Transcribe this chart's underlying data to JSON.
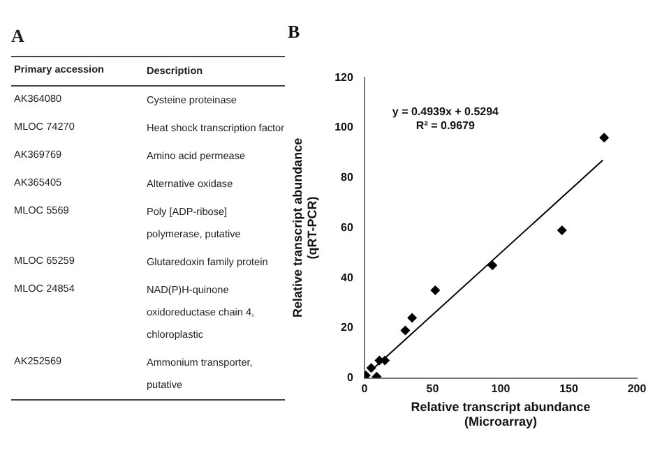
{
  "chart_data": [
    {
      "type": "other",
      "title": "A",
      "annotations": [
        "Primary accession",
        "Description",
        "AK364080",
        "Cysteine proteinase",
        "MLOC 74270",
        "Heat shock transcription factor",
        "AK369769",
        "Amino acid permease",
        "AK365405",
        "Alternative oxidase",
        "MLOC 5569",
        "Poly [ADP-ribose] polymerase, putative",
        "MLOC 65259",
        "Glutaredoxin family protein",
        "MLOC 24854",
        "NAD(P)H-quinone oxidoreductase chain 4, chloroplastic",
        "AK252569",
        "Ammonium transporter, putative"
      ]
    },
    {
      "type": "scatter",
      "title": "B",
      "xlabel": "Relative transcript abundance\n(Microarray)",
      "ylabel": "Relative transcript abundance\n(qRT-PCR)",
      "grid": false,
      "legend": false,
      "xlim": [
        0,
        200
      ],
      "xticks": [
        0,
        50,
        100,
        150,
        200
      ],
      "ylim": [
        0,
        120
      ],
      "yticks": [
        0,
        20,
        40,
        60,
        80,
        100,
        120
      ],
      "annotations": [
        "y = 0.4939x + 0.5294",
        "R² = 0.9679"
      ],
      "series": [
        {
          "color": "#000000",
          "marker": "diamond",
          "x": [
            1,
            5,
            9,
            11,
            15,
            30,
            35,
            52,
            94,
            145,
            176
          ],
          "values": [
            1,
            4,
            0.5,
            7,
            7,
            19,
            24,
            35,
            45,
            59,
            96
          ]
        },
        {
          "type": "line",
          "color": "#000000",
          "x": [
            5,
            175
          ],
          "values": [
            3,
            87
          ]
        }
      ]
    }
  ]
}
